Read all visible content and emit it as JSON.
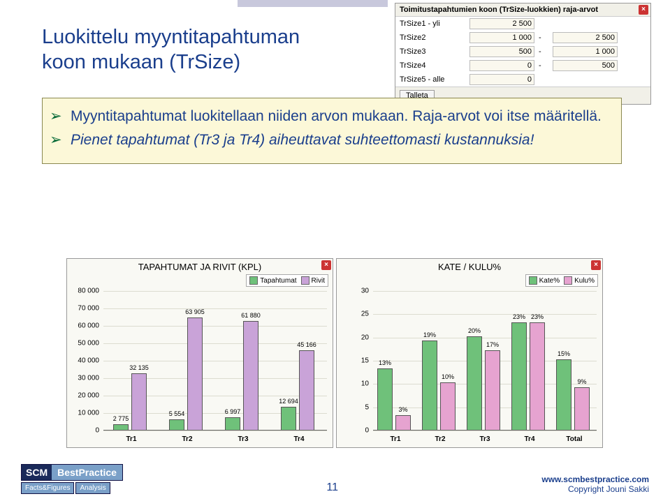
{
  "title_line1": "Luokittelu myyntitapahtuman",
  "title_line2": "koon mukaan (TrSize)",
  "dialog": {
    "header": "Toimitustapahtumien koon (TrSize-luokkien) raja-arvot",
    "rows": [
      {
        "label": "TrSize1 - yli",
        "v1": "2 500",
        "sep": "",
        "v2": null
      },
      {
        "label": "TrSize2",
        "v1": "1 000",
        "sep": "-",
        "v2": "2 500"
      },
      {
        "label": "TrSize3",
        "v1": "500",
        "sep": "-",
        "v2": "1 000"
      },
      {
        "label": "TrSize4",
        "v1": "0",
        "sep": "-",
        "v2": "500"
      },
      {
        "label": "TrSize5 - alle",
        "v1": "0",
        "sep": "",
        "v2": null
      }
    ],
    "button": "Talleta"
  },
  "bullets": [
    "Myyntitapahtumat luokitellaan niiden arvon mukaan. Raja-arvot voi itse määritellä.",
    "Pienet tapahtumat (Tr3 ja Tr4) aiheuttavat suhteettomasti kustannuksia!"
  ],
  "chart1": {
    "title": "TAPAHTUMAT JA RIVIT (KPL)",
    "legend": [
      {
        "label": "Tapahtumat",
        "color": "#6fc17a"
      },
      {
        "label": "Rivit",
        "color": "#c9a3d8"
      }
    ],
    "ymax": 80000,
    "ytick_step": 10000,
    "ylabels": [
      "0",
      "10 000",
      "20 000",
      "30 000",
      "40 000",
      "50 000",
      "60 000",
      "70 000",
      "80 000"
    ],
    "categories": [
      "Tr1",
      "Tr2",
      "Tr3",
      "Tr4"
    ],
    "series1_values": [
      2775,
      5554,
      6997,
      12694
    ],
    "series1_labels": [
      "2 775",
      "5 554",
      "6 997",
      "12 694"
    ],
    "series2_values": [
      32135,
      63905,
      61880,
      45166
    ],
    "series2_labels": [
      "32 135",
      "63 905",
      "61 880",
      "45 166"
    ],
    "series1_color": "#6fc17a",
    "series2_color": "#c9a3d8",
    "background": "#f9f9f4"
  },
  "chart2": {
    "title": "KATE / KULU%",
    "legend": [
      {
        "label": "Kate%",
        "color": "#6fc17a"
      },
      {
        "label": "Kulu%",
        "color": "#e6a3d0"
      }
    ],
    "ymax": 30,
    "ytick_step": 5,
    "ylabels": [
      "0",
      "5",
      "10",
      "15",
      "20",
      "25",
      "30"
    ],
    "categories": [
      "Tr1",
      "Tr2",
      "Tr3",
      "Tr4",
      "Total"
    ],
    "series1_values": [
      13,
      19,
      20,
      23,
      15
    ],
    "series1_labels": [
      "13%",
      "19%",
      "20%",
      "23%",
      "15%"
    ],
    "series2_values": [
      3,
      10,
      17,
      23,
      9
    ],
    "series2_labels": [
      "3%",
      "10%",
      "17%",
      "23%",
      "9%"
    ],
    "series1_color": "#6fc17a",
    "series2_color": "#e6a3d0",
    "background": "#f9f9f4"
  },
  "footer": {
    "scm_logo": "SCM",
    "scm_best": "BestPractice",
    "tag1": "Facts&Figures",
    "tag2": "Analysis",
    "page": "11",
    "url": "www.scmbestpractice.com",
    "copyright": "Copyright Jouni Sakki"
  }
}
